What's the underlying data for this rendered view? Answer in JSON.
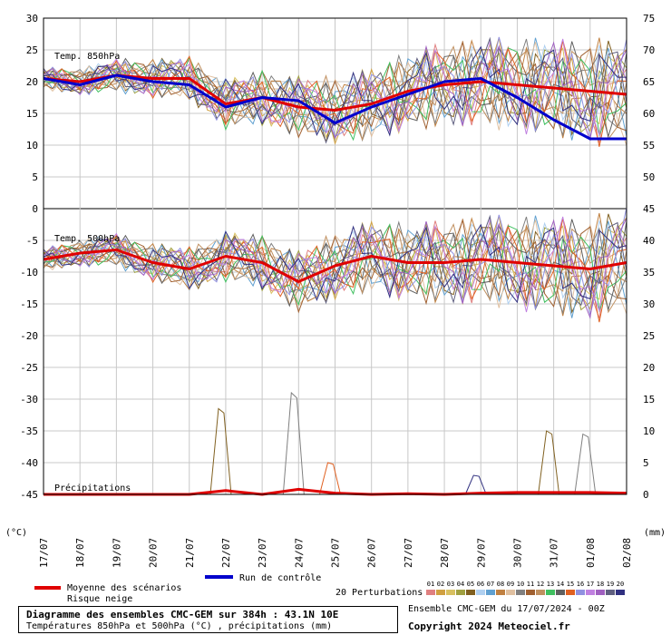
{
  "panels": {
    "t850": "Temp. 850hPa",
    "t500": "Temp. 500hPa",
    "precip": "Précipitations"
  },
  "axes": {
    "left_unit": "(°C)",
    "right_unit": "(mm)",
    "left_ticks": [
      30,
      25,
      20,
      15,
      10,
      5,
      0,
      -5,
      -10,
      -15,
      -20,
      -25,
      -30,
      -35,
      -40,
      -45
    ],
    "right_ticks": [
      75,
      70,
      65,
      60,
      55,
      50,
      45,
      40,
      35,
      30,
      25,
      20,
      15,
      10,
      5,
      0
    ],
    "x_ticks": [
      "17/07",
      "18/07",
      "19/07",
      "20/07",
      "21/07",
      "22/07",
      "23/07",
      "24/07",
      "25/07",
      "26/07",
      "27/07",
      "28/07",
      "29/07",
      "30/07",
      "31/07",
      "01/08",
      "02/08"
    ]
  },
  "legend": {
    "mean": "Moyenne des scénarios",
    "snow": "Risque neige",
    "control": "Run de contrôle",
    "perturbations": "20 Perturbations",
    "perturbation_ids": [
      "01",
      "02",
      "03",
      "04",
      "05",
      "06",
      "07",
      "08",
      "09",
      "10",
      "11",
      "12",
      "13",
      "14",
      "15",
      "16",
      "17",
      "18",
      "19",
      "20"
    ],
    "perturbation_colors": [
      "#e08080",
      "#d0a040",
      "#d8c060",
      "#a0a040",
      "#806020",
      "#b0d0f0",
      "#60a0d0",
      "#c08040",
      "#e0c0a0",
      "#808080",
      "#a06030",
      "#c09060",
      "#40c060",
      "#606060",
      "#e06020",
      "#9090e0",
      "#c080e0",
      "#a060c0",
      "#606080",
      "#303080"
    ],
    "mean_color": "#e00000",
    "control_color": "#0000cc"
  },
  "footer": {
    "title": "Diagramme des ensembles CMC-GEM sur 384h : 43.1N 10E",
    "subtitle": "Températures 850hPa et 500hPa (°C) , précipitations (mm)",
    "ensemble": "Ensemble CMC-GEM du 17/07/2024 - 00Z",
    "copyright": "Copyright 2024 Meteociel.fr"
  },
  "chart_data": {
    "type": "line",
    "x_unit": "date",
    "x": [
      "17/07",
      "18/07",
      "19/07",
      "20/07",
      "21/07",
      "22/07",
      "23/07",
      "24/07",
      "25/07",
      "26/07",
      "27/07",
      "28/07",
      "29/07",
      "30/07",
      "31/07",
      "01/08",
      "02/08"
    ],
    "ylim_left": [
      -45,
      30
    ],
    "ylim_right": [
      0,
      75
    ],
    "grid": true,
    "series": [
      {
        "name": "Moyenne des scénarios",
        "panel": "Temp. 850hPa",
        "values": [
          20.5,
          20.0,
          21.0,
          20.5,
          20.5,
          16.5,
          17.5,
          16.0,
          15.5,
          16.5,
          18.5,
          19.5,
          20.0,
          19.5,
          19.0,
          18.5,
          18.0
        ]
      },
      {
        "name": "Run de contrôle",
        "panel": "Temp. 850hPa",
        "values": [
          20.5,
          19.5,
          21.0,
          20.0,
          19.5,
          16.0,
          17.5,
          17.0,
          13.5,
          16.0,
          18.0,
          20.0,
          20.5,
          17.5,
          14.0,
          11.0,
          11.0
        ]
      },
      {
        "name": "Moyenne des scénarios",
        "panel": "Temp. 500hPa",
        "values": [
          -8.0,
          -7.0,
          -6.5,
          -8.5,
          -9.5,
          -7.5,
          -8.5,
          -11.5,
          -9.0,
          -7.5,
          -8.5,
          -8.5,
          -8.0,
          -8.5,
          -9.0,
          -9.5,
          -8.5
        ]
      },
      {
        "name": "Moyenne des scénarios",
        "panel": "Précipitations",
        "values": [
          0,
          0,
          0,
          0,
          0,
          0.6,
          0,
          0.8,
          0.2,
          0,
          0.1,
          0,
          0.2,
          0.3,
          0.3,
          0.3,
          0.2
        ]
      }
    ],
    "perturbation_peaks_mm": [
      {
        "x": "22/07",
        "value": 13.5
      },
      {
        "x": "24/07",
        "value": 16.0
      },
      {
        "x": "25/07",
        "value": 5.0
      },
      {
        "x": "29/07",
        "value": 3.0
      },
      {
        "x": "31/07",
        "value": 10.0
      },
      {
        "x": "01/08",
        "value": 9.5
      }
    ]
  }
}
